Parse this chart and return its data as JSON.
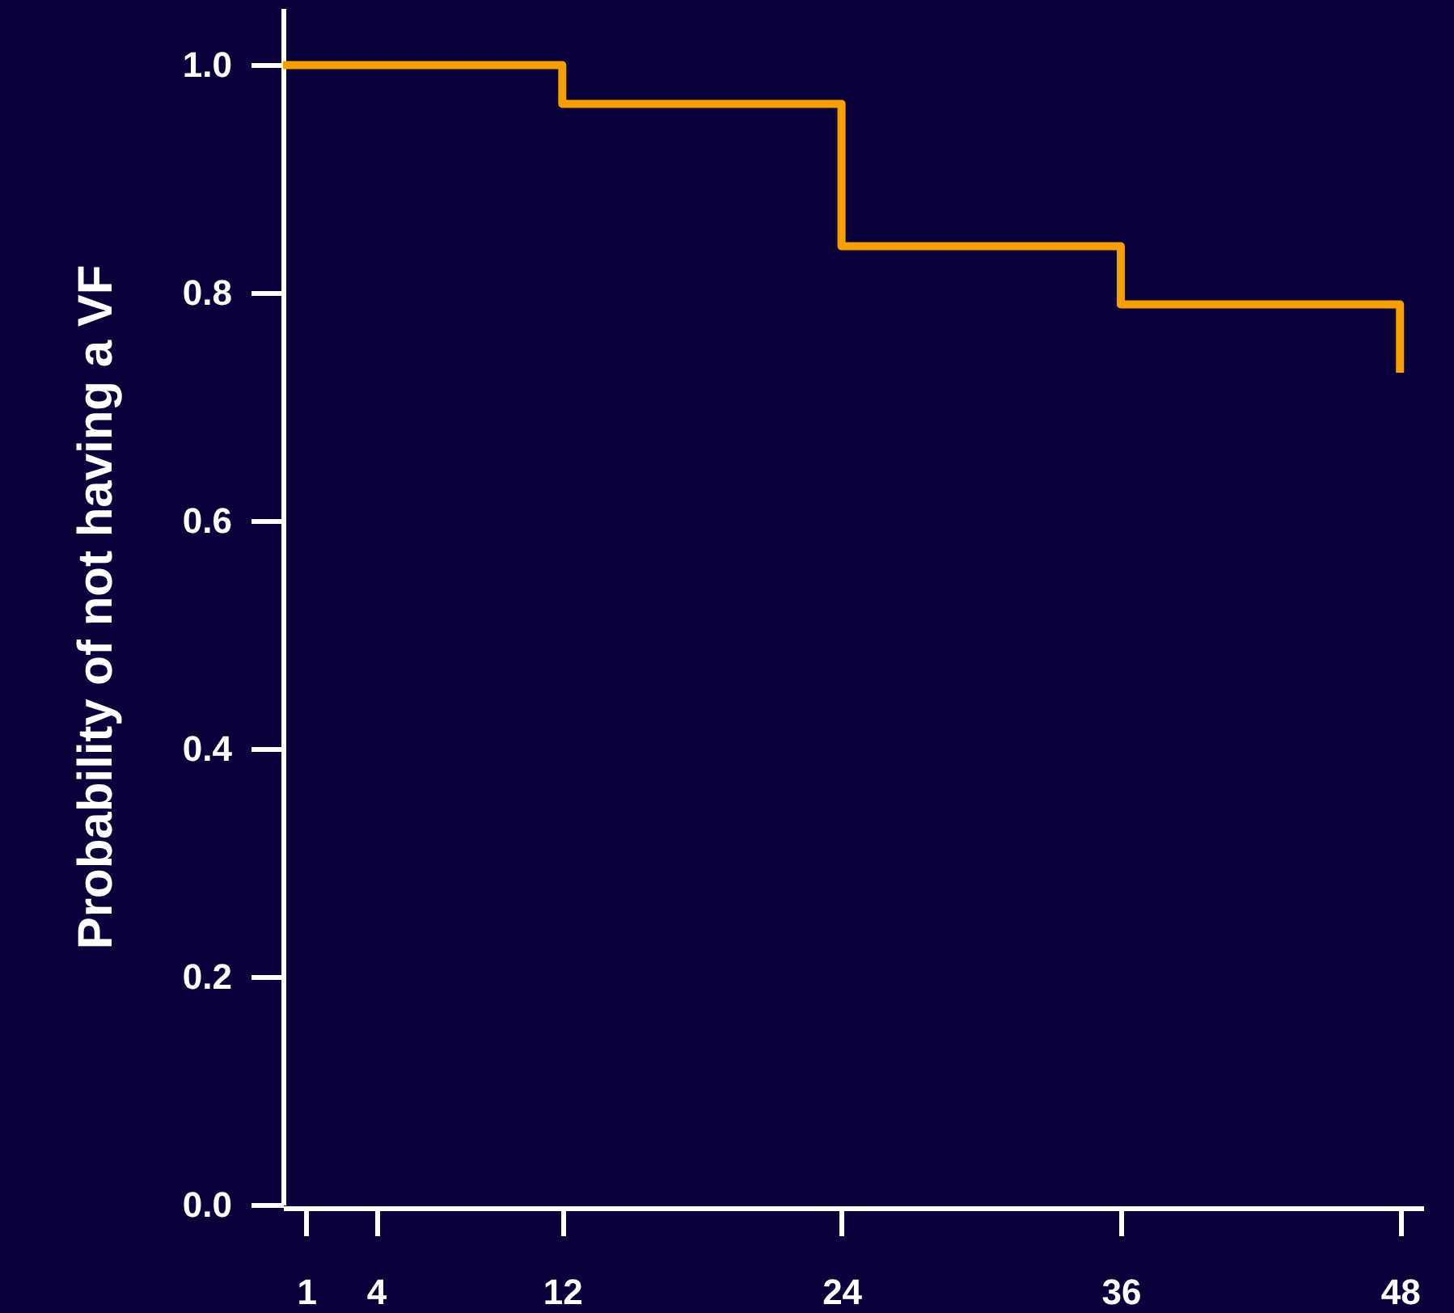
{
  "chart_data": {
    "type": "step",
    "ylabel": "Probability of not having a VF",
    "x": [
      0,
      12,
      24,
      36,
      48
    ],
    "series": [
      {
        "color": "#f5a000",
        "values": [
          1,
          0.966,
          0.841,
          0.79,
          0.73
        ]
      }
    ],
    "xlim": [
      0,
      49
    ],
    "xticks": [
      1,
      4,
      12,
      24,
      36,
      48
    ],
    "ylim": [
      0,
      1.05
    ],
    "yticks": [
      {
        "value": 0,
        "label": "0.0"
      },
      {
        "value": 0.2,
        "label": "0.2"
      },
      {
        "value": 0.4,
        "label": "0.4"
      },
      {
        "value": 0.6,
        "label": "0.6"
      },
      {
        "value": 0.8,
        "label": "0.8"
      },
      {
        "value": 1,
        "label": "1.0"
      }
    ],
    "grid": false,
    "marker": "none",
    "line_style": "solid"
  }
}
